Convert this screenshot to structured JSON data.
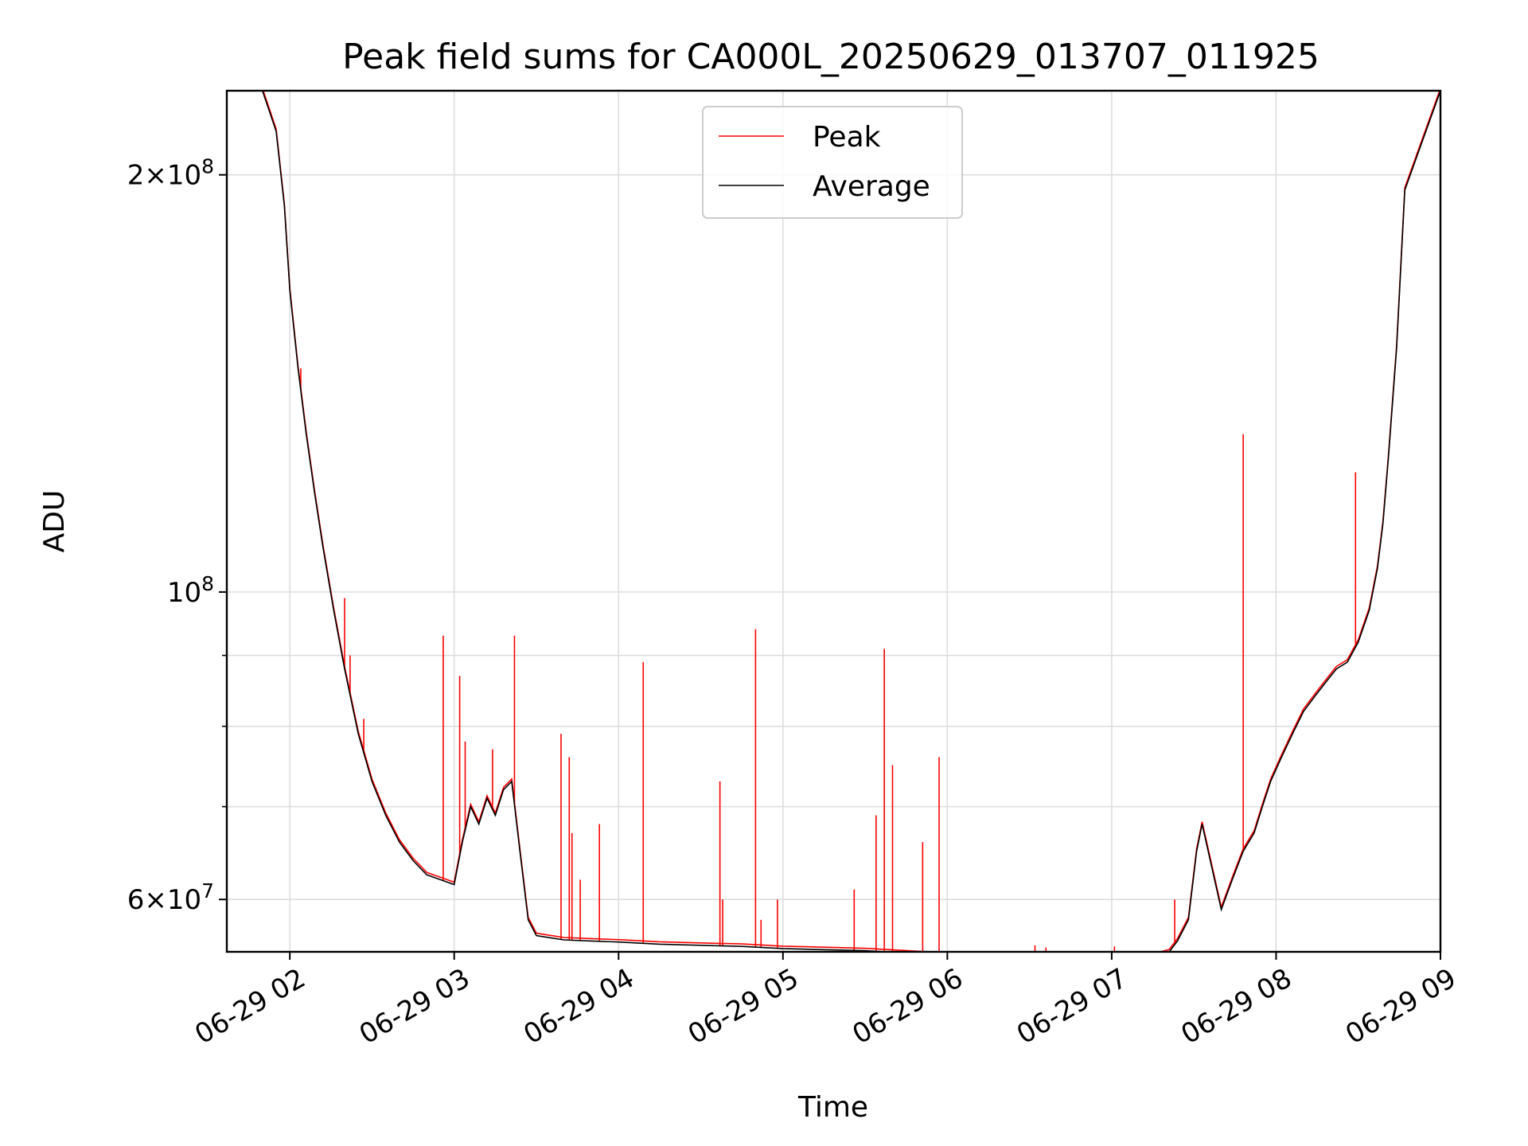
{
  "chart_data": {
    "type": "line",
    "title": "Peak field sums for CA000L_20250629_013707_011925",
    "xlabel": "Time",
    "ylabel": "ADU",
    "yscale": "log",
    "xlim": [
      "2025-06-29 01:37",
      "2025-06-29 09:00"
    ],
    "ylim": [
      55000000,
      230000000
    ],
    "grid": true,
    "legend_position": "upper center",
    "x_ticks": [
      {
        "value": "2025-06-29 02:00",
        "label": "06-29 02"
      },
      {
        "value": "2025-06-29 03:00",
        "label": "06-29 03"
      },
      {
        "value": "2025-06-29 04:00",
        "label": "06-29 04"
      },
      {
        "value": "2025-06-29 05:00",
        "label": "06-29 05"
      },
      {
        "value": "2025-06-29 06:00",
        "label": "06-29 06"
      },
      {
        "value": "2025-06-29 07:00",
        "label": "06-29 07"
      },
      {
        "value": "2025-06-29 08:00",
        "label": "06-29 08"
      },
      {
        "value": "2025-06-29 09:00",
        "label": "06-29 09"
      }
    ],
    "y_major_ticks": [
      {
        "value": 200000000,
        "base": "2",
        "times": "×",
        "power": "10",
        "exp": "8"
      },
      {
        "value": 100000000,
        "base": "",
        "times": "",
        "power": "10",
        "exp": "8"
      },
      {
        "value": 60000000,
        "base": "6",
        "times": "×",
        "power": "10",
        "exp": "7"
      }
    ],
    "y_minor_ticks": [
      70000000,
      80000000,
      90000000
    ],
    "series": [
      {
        "name": "Average",
        "color": "#000000",
        "x": [
          "2025-06-29 01:37",
          "2025-06-29 01:45",
          "2025-06-29 01:50",
          "2025-06-29 01:55",
          "2025-06-29 01:58",
          "2025-06-29 02:00",
          "2025-06-29 02:03",
          "2025-06-29 02:06",
          "2025-06-29 02:09",
          "2025-06-29 02:12",
          "2025-06-29 02:16",
          "2025-06-29 02:20",
          "2025-06-29 02:25",
          "2025-06-29 02:30",
          "2025-06-29 02:35",
          "2025-06-29 02:40",
          "2025-06-29 02:45",
          "2025-06-29 02:50",
          "2025-06-29 02:55",
          "2025-06-29 03:00",
          "2025-06-29 03:03",
          "2025-06-29 03:06",
          "2025-06-29 03:09",
          "2025-06-29 03:12",
          "2025-06-29 03:15",
          "2025-06-29 03:18",
          "2025-06-29 03:21",
          "2025-06-29 03:24",
          "2025-06-29 03:27",
          "2025-06-29 03:30",
          "2025-06-29 03:35",
          "2025-06-29 03:40",
          "2025-06-29 03:50",
          "2025-06-29 04:00",
          "2025-06-29 04:15",
          "2025-06-29 04:30",
          "2025-06-29 04:45",
          "2025-06-29 05:00",
          "2025-06-29 05:15",
          "2025-06-29 05:30",
          "2025-06-29 05:45",
          "2025-06-29 06:00",
          "2025-06-29 06:15",
          "2025-06-29 06:30",
          "2025-06-29 06:45",
          "2025-06-29 07:00",
          "2025-06-29 07:15",
          "2025-06-29 07:21",
          "2025-06-29 07:24",
          "2025-06-29 07:28",
          "2025-06-29 07:31",
          "2025-06-29 07:33",
          "2025-06-29 07:36",
          "2025-06-29 07:40",
          "2025-06-29 07:44",
          "2025-06-29 07:48",
          "2025-06-29 07:52",
          "2025-06-29 07:55",
          "2025-06-29 07:58",
          "2025-06-29 08:02",
          "2025-06-29 08:06",
          "2025-06-29 08:10",
          "2025-06-29 08:14",
          "2025-06-29 08:18",
          "2025-06-29 08:22",
          "2025-06-29 08:26",
          "2025-06-29 08:30",
          "2025-06-29 08:34",
          "2025-06-29 08:37",
          "2025-06-29 08:39",
          "2025-06-29 08:41",
          "2025-06-29 08:44",
          "2025-06-29 08:47",
          "2025-06-29 09:00"
        ],
        "y": [
          230000000,
          230000000,
          230000000,
          215000000,
          190000000,
          165000000,
          145000000,
          130000000,
          118000000,
          108000000,
          97000000,
          88000000,
          79000000,
          73000000,
          69000000,
          66000000,
          64000000,
          62500000,
          62000000,
          61500000,
          66000000,
          70000000,
          68000000,
          71000000,
          69000000,
          72000000,
          73000000,
          65000000,
          58000000,
          56500000,
          56300000,
          56100000,
          56000000,
          55900000,
          55700000,
          55600000,
          55500000,
          55300000,
          55200000,
          55100000,
          54900000,
          54700000,
          54650000,
          54600000,
          54550000,
          54500000,
          54600000,
          55000000,
          56000000,
          58000000,
          65000000,
          68000000,
          64000000,
          59000000,
          62000000,
          65000000,
          67000000,
          70000000,
          73000000,
          76000000,
          79000000,
          82000000,
          84000000,
          86000000,
          88000000,
          89000000,
          92000000,
          97000000,
          104000000,
          112000000,
          125000000,
          150000000,
          195000000,
          230000000
        ]
      },
      {
        "name": "Peak",
        "color": "#ff0000",
        "spikes": [
          {
            "x": "2025-06-29 02:04",
            "y": 145000000
          },
          {
            "x": "2025-06-29 02:08",
            "y": 122000000
          },
          {
            "x": "2025-06-29 02:10",
            "y": 115000000
          },
          {
            "x": "2025-06-29 02:20",
            "y": 99000000
          },
          {
            "x": "2025-06-29 02:22",
            "y": 90000000
          },
          {
            "x": "2025-06-29 02:27",
            "y": 81000000
          },
          {
            "x": "2025-06-29 02:56",
            "y": 93000000
          },
          {
            "x": "2025-06-29 03:02",
            "y": 87000000
          },
          {
            "x": "2025-06-29 03:04",
            "y": 78000000
          },
          {
            "x": "2025-06-29 03:14",
            "y": 77000000
          },
          {
            "x": "2025-06-29 03:22",
            "y": 93000000
          },
          {
            "x": "2025-06-29 03:39",
            "y": 79000000
          },
          {
            "x": "2025-06-29 03:42",
            "y": 76000000
          },
          {
            "x": "2025-06-29 03:43",
            "y": 67000000
          },
          {
            "x": "2025-06-29 03:46",
            "y": 62000000
          },
          {
            "x": "2025-06-29 03:53",
            "y": 68000000
          },
          {
            "x": "2025-06-29 04:09",
            "y": 89000000
          },
          {
            "x": "2025-06-29 04:37",
            "y": 73000000
          },
          {
            "x": "2025-06-29 04:38",
            "y": 60000000
          },
          {
            "x": "2025-06-29 04:50",
            "y": 94000000
          },
          {
            "x": "2025-06-29 04:52",
            "y": 58000000
          },
          {
            "x": "2025-06-29 04:58",
            "y": 60000000
          },
          {
            "x": "2025-06-29 05:26",
            "y": 61000000
          },
          {
            "x": "2025-06-29 05:34",
            "y": 69000000
          },
          {
            "x": "2025-06-29 05:37",
            "y": 91000000
          },
          {
            "x": "2025-06-29 05:40",
            "y": 75000000
          },
          {
            "x": "2025-06-29 05:51",
            "y": 66000000
          },
          {
            "x": "2025-06-29 05:57",
            "y": 76000000
          },
          {
            "x": "2025-06-29 06:32",
            "y": 55600000
          },
          {
            "x": "2025-06-29 06:36",
            "y": 55400000
          },
          {
            "x": "2025-06-29 07:01",
            "y": 55500000
          },
          {
            "x": "2025-06-29 07:23",
            "y": 60000000
          },
          {
            "x": "2025-06-29 07:48",
            "y": 130000000
          },
          {
            "x": "2025-06-29 08:29",
            "y": 122000000
          }
        ]
      }
    ]
  }
}
